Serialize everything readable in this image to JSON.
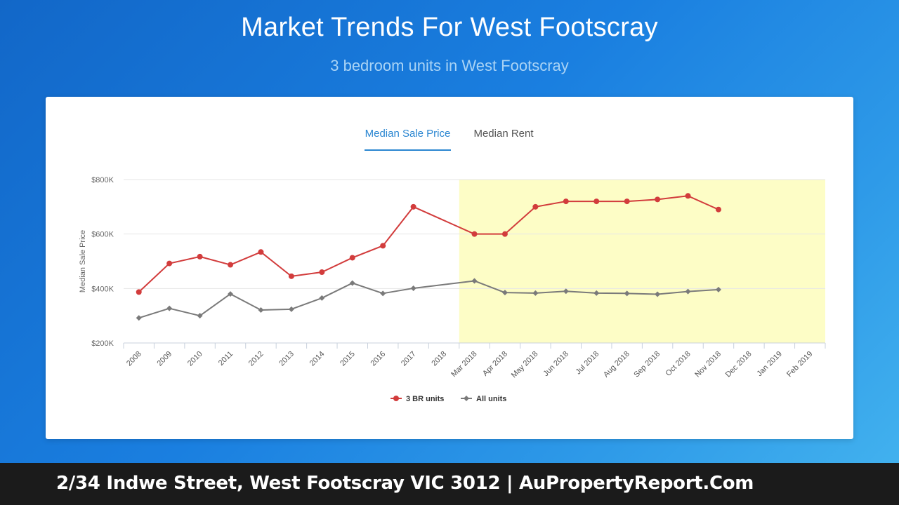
{
  "header": {
    "title": "Market Trends For West Footscray",
    "subtitle": "3 bedroom units in West Footscray"
  },
  "tabs": [
    {
      "label": "Median Sale Price",
      "active": true
    },
    {
      "label": "Median Rent",
      "active": false
    }
  ],
  "footer": {
    "text": "2/34 Indwe Street, West Footscray VIC 3012 | AuPropertyReport.Com"
  },
  "colors": {
    "accent": "#2a86d1",
    "series_3br": "#d23c3c",
    "series_all": "#7a7a7a",
    "highlight_band": "#fdfdc6"
  },
  "chart_data": {
    "type": "line",
    "ylabel": "Median Sale Price",
    "xlabel": "",
    "ylim": [
      200000,
      800000
    ],
    "yticks": [
      200000,
      400000,
      600000,
      800000
    ],
    "ytick_labels": [
      "$200K",
      "$400K",
      "$600K",
      "$800K"
    ],
    "grid": true,
    "legend_position": "bottom-center",
    "highlight_range": [
      "Mar 2018",
      "Feb 2019"
    ],
    "categories": [
      "2008",
      "2009",
      "2010",
      "2011",
      "2012",
      "2013",
      "2014",
      "2015",
      "2016",
      "2017",
      "2018",
      "Mar 2018",
      "Apr 2018",
      "May 2018",
      "Jun 2018",
      "Jul 2018",
      "Aug 2018",
      "Sep 2018",
      "Oct 2018",
      "Nov 2018",
      "Dec 2018",
      "Jan 2019",
      "Feb 2019"
    ],
    "series": [
      {
        "name": "3 BR units",
        "marker": "circle",
        "values": [
          387000,
          492000,
          517000,
          487000,
          534000,
          445000,
          460000,
          513000,
          557000,
          700000,
          null,
          600000,
          600000,
          700000,
          720000,
          720000,
          720000,
          727000,
          740000,
          690000,
          null,
          null,
          null
        ]
      },
      {
        "name": "All units",
        "marker": "diamond",
        "values": [
          292000,
          327000,
          300000,
          380000,
          321000,
          324000,
          365000,
          420000,
          382000,
          401000,
          null,
          428000,
          385000,
          383000,
          390000,
          383000,
          382000,
          379000,
          389000,
          396000,
          null,
          null,
          null
        ]
      }
    ]
  }
}
